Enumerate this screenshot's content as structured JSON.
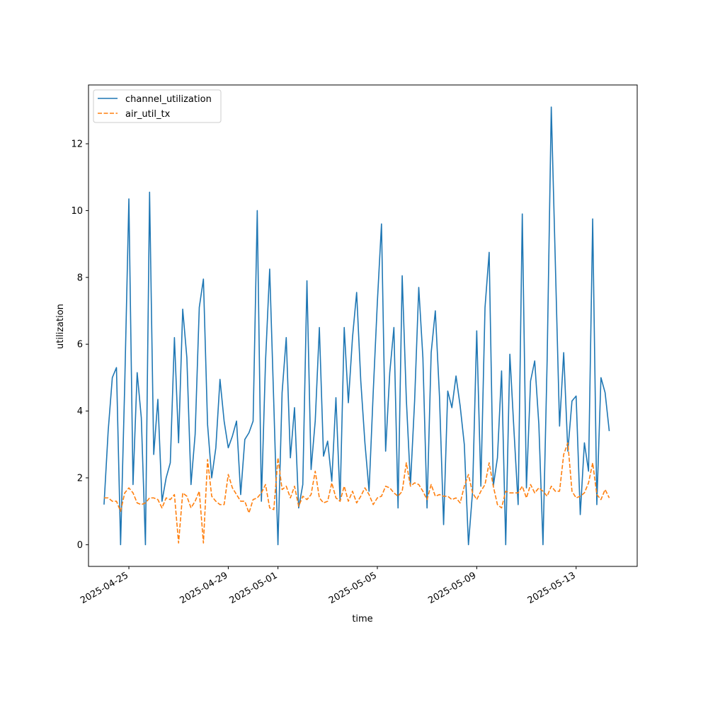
{
  "chart_data": {
    "type": "line",
    "title": "",
    "xlabel": "time",
    "ylabel": "utilization",
    "xlim": [
      "2025-04-23T09:00",
      "2025-05-15T11:00"
    ],
    "ylim": [
      -0.65,
      13.76
    ],
    "x_ticks": [
      {
        "date": "2025-04-25",
        "label": "2025-04-25"
      },
      {
        "date": "2025-04-29",
        "label": "2025-04-29"
      },
      {
        "date": "2025-05-01",
        "label": "2025-05-01"
      },
      {
        "date": "2025-05-05",
        "label": "2025-05-05"
      },
      {
        "date": "2025-05-09",
        "label": "2025-05-09"
      },
      {
        "date": "2025-05-13",
        "label": "2025-05-13"
      }
    ],
    "y_ticks": [
      0,
      2,
      4,
      6,
      8,
      10,
      12
    ],
    "y_tick_labels": [
      "0",
      "2",
      "4",
      "6",
      "8",
      "10",
      "12"
    ],
    "grid": false,
    "legend": "top-left",
    "series": [
      {
        "name": "channel_utilization",
        "color": "#1f77b4",
        "style": "solid",
        "points": [
          [
            "2025-04-24T00:00",
            1.2
          ],
          [
            "2025-04-24T04:00",
            3.4
          ],
          [
            "2025-04-24T08:00",
            5.0
          ],
          [
            "2025-04-24T12:00",
            5.3
          ],
          [
            "2025-04-24T16:00",
            0.0
          ],
          [
            "2025-04-24T20:00",
            4.8
          ],
          [
            "2025-04-25T00:00",
            10.35
          ],
          [
            "2025-04-25T04:00",
            1.8
          ],
          [
            "2025-04-25T08:00",
            5.15
          ],
          [
            "2025-04-25T12:00",
            3.8
          ],
          [
            "2025-04-25T16:00",
            0.0
          ],
          [
            "2025-04-25T20:00",
            10.55
          ],
          [
            "2025-04-26T00:00",
            2.7
          ],
          [
            "2025-04-26T04:00",
            4.35
          ],
          [
            "2025-04-26T08:00",
            1.3
          ],
          [
            "2025-04-26T12:00",
            2.0
          ],
          [
            "2025-04-26T16:00",
            2.45
          ],
          [
            "2025-04-26T20:00",
            6.2
          ],
          [
            "2025-04-27T00:00",
            3.05
          ],
          [
            "2025-04-27T04:00",
            7.05
          ],
          [
            "2025-04-27T08:00",
            5.6
          ],
          [
            "2025-04-27T12:00",
            1.8
          ],
          [
            "2025-04-27T16:00",
            3.3
          ],
          [
            "2025-04-27T20:00",
            7.1
          ],
          [
            "2025-04-28T00:00",
            7.95
          ],
          [
            "2025-04-28T04:00",
            3.6
          ],
          [
            "2025-04-28T08:00",
            2.0
          ],
          [
            "2025-04-28T12:00",
            2.9
          ],
          [
            "2025-04-28T16:00",
            4.95
          ],
          [
            "2025-04-28T20:00",
            3.7
          ],
          [
            "2025-04-29T00:00",
            2.9
          ],
          [
            "2025-04-29T04:00",
            3.25
          ],
          [
            "2025-04-29T08:00",
            3.7
          ],
          [
            "2025-04-29T12:00",
            1.5
          ],
          [
            "2025-04-29T16:00",
            3.15
          ],
          [
            "2025-04-29T20:00",
            3.35
          ],
          [
            "2025-04-30T00:00",
            3.7
          ],
          [
            "2025-04-30T04:00",
            10.0
          ],
          [
            "2025-04-30T08:00",
            1.3
          ],
          [
            "2025-04-30T12:00",
            5.5
          ],
          [
            "2025-04-30T16:00",
            8.25
          ],
          [
            "2025-04-30T20:00",
            4.2
          ],
          [
            "2025-05-01T00:00",
            0.0
          ],
          [
            "2025-05-01T04:00",
            4.55
          ],
          [
            "2025-05-01T08:00",
            6.2
          ],
          [
            "2025-05-01T12:00",
            2.6
          ],
          [
            "2025-05-01T16:00",
            4.1
          ],
          [
            "2025-05-01T20:00",
            1.1
          ],
          [
            "2025-05-02T00:00",
            1.8
          ],
          [
            "2025-05-02T04:00",
            7.9
          ],
          [
            "2025-05-02T08:00",
            2.25
          ],
          [
            "2025-05-02T12:00",
            3.7
          ],
          [
            "2025-05-02T16:00",
            6.5
          ],
          [
            "2025-05-02T20:00",
            2.65
          ],
          [
            "2025-05-03T00:00",
            3.1
          ],
          [
            "2025-05-03T04:00",
            1.9
          ],
          [
            "2025-05-03T08:00",
            4.4
          ],
          [
            "2025-05-03T12:00",
            1.3
          ],
          [
            "2025-05-03T16:00",
            6.5
          ],
          [
            "2025-05-03T20:00",
            4.25
          ],
          [
            "2025-05-04T00:00",
            6.2
          ],
          [
            "2025-05-04T04:00",
            7.55
          ],
          [
            "2025-05-04T08:00",
            4.9
          ],
          [
            "2025-05-04T12:00",
            3.05
          ],
          [
            "2025-05-04T16:00",
            1.6
          ],
          [
            "2025-05-04T20:00",
            4.55
          ],
          [
            "2025-05-05T00:00",
            7.25
          ],
          [
            "2025-05-05T04:00",
            9.6
          ],
          [
            "2025-05-05T08:00",
            2.8
          ],
          [
            "2025-05-05T12:00",
            5.15
          ],
          [
            "2025-05-05T16:00",
            6.5
          ],
          [
            "2025-05-05T20:00",
            1.1
          ],
          [
            "2025-05-06T00:00",
            8.05
          ],
          [
            "2025-05-06T04:00",
            4.35
          ],
          [
            "2025-05-06T08:00",
            1.8
          ],
          [
            "2025-05-06T12:00",
            4.3
          ],
          [
            "2025-05-06T16:00",
            7.7
          ],
          [
            "2025-05-06T20:00",
            5.6
          ],
          [
            "2025-05-07T00:00",
            1.1
          ],
          [
            "2025-05-07T04:00",
            5.75
          ],
          [
            "2025-05-07T08:00",
            7.0
          ],
          [
            "2025-05-07T12:00",
            4.45
          ],
          [
            "2025-05-07T16:00",
            0.6
          ],
          [
            "2025-05-07T20:00",
            4.6
          ],
          [
            "2025-05-08T00:00",
            4.1
          ],
          [
            "2025-05-08T04:00",
            5.05
          ],
          [
            "2025-05-08T08:00",
            4.15
          ],
          [
            "2025-05-08T12:00",
            3.0
          ],
          [
            "2025-05-08T16:00",
            0.0
          ],
          [
            "2025-05-08T20:00",
            1.6
          ],
          [
            "2025-05-09T00:00",
            6.4
          ],
          [
            "2025-05-09T04:00",
            1.75
          ],
          [
            "2025-05-09T08:00",
            7.1
          ],
          [
            "2025-05-09T12:00",
            8.75
          ],
          [
            "2025-05-09T16:00",
            1.75
          ],
          [
            "2025-05-09T20:00",
            2.6
          ],
          [
            "2025-05-10T00:00",
            5.2
          ],
          [
            "2025-05-10T04:00",
            0.0
          ],
          [
            "2025-05-10T08:00",
            5.7
          ],
          [
            "2025-05-10T12:00",
            3.4
          ],
          [
            "2025-05-10T16:00",
            1.2
          ],
          [
            "2025-05-10T20:00",
            9.9
          ],
          [
            "2025-05-11T00:00",
            1.7
          ],
          [
            "2025-05-11T04:00",
            4.9
          ],
          [
            "2025-05-11T08:00",
            5.5
          ],
          [
            "2025-05-11T12:00",
            3.6
          ],
          [
            "2025-05-11T16:00",
            0.0
          ],
          [
            "2025-05-11T20:00",
            5.5
          ],
          [
            "2025-05-12T00:00",
            13.1
          ],
          [
            "2025-05-12T04:00",
            8.35
          ],
          [
            "2025-05-12T08:00",
            3.55
          ],
          [
            "2025-05-12T12:00",
            5.75
          ],
          [
            "2025-05-12T16:00",
            2.8
          ],
          [
            "2025-05-12T20:00",
            4.3
          ],
          [
            "2025-05-13T00:00",
            4.45
          ],
          [
            "2025-05-13T04:00",
            0.9
          ],
          [
            "2025-05-13T08:00",
            3.05
          ],
          [
            "2025-05-13T12:00",
            2.2
          ],
          [
            "2025-05-13T16:00",
            9.75
          ],
          [
            "2025-05-13T20:00",
            1.2
          ],
          [
            "2025-05-14T00:00",
            5.0
          ],
          [
            "2025-05-14T04:00",
            4.55
          ],
          [
            "2025-05-14T08:00",
            3.4
          ]
        ]
      },
      {
        "name": "air_util_tx",
        "color": "#ff7f0e",
        "style": "dashed",
        "points": [
          [
            "2025-04-24T00:00",
            1.4
          ],
          [
            "2025-04-24T04:00",
            1.4
          ],
          [
            "2025-04-24T08:00",
            1.3
          ],
          [
            "2025-04-24T12:00",
            1.3
          ],
          [
            "2025-04-24T16:00",
            1.0
          ],
          [
            "2025-04-24T20:00",
            1.55
          ],
          [
            "2025-04-25T00:00",
            1.7
          ],
          [
            "2025-04-25T04:00",
            1.55
          ],
          [
            "2025-04-25T08:00",
            1.25
          ],
          [
            "2025-04-25T12:00",
            1.2
          ],
          [
            "2025-04-25T16:00",
            1.25
          ],
          [
            "2025-04-25T20:00",
            1.4
          ],
          [
            "2025-04-26T00:00",
            1.4
          ],
          [
            "2025-04-26T04:00",
            1.35
          ],
          [
            "2025-04-26T08:00",
            1.1
          ],
          [
            "2025-04-26T12:00",
            1.4
          ],
          [
            "2025-04-26T16:00",
            1.35
          ],
          [
            "2025-04-26T20:00",
            1.5
          ],
          [
            "2025-04-27T00:00",
            0.05
          ],
          [
            "2025-04-27T04:00",
            1.55
          ],
          [
            "2025-04-27T08:00",
            1.45
          ],
          [
            "2025-04-27T12:00",
            1.1
          ],
          [
            "2025-04-27T16:00",
            1.3
          ],
          [
            "2025-04-27T20:00",
            1.6
          ],
          [
            "2025-04-28T00:00",
            0.05
          ],
          [
            "2025-04-28T04:00",
            2.55
          ],
          [
            "2025-04-28T08:00",
            1.45
          ],
          [
            "2025-04-28T12:00",
            1.3
          ],
          [
            "2025-04-28T16:00",
            1.2
          ],
          [
            "2025-04-28T20:00",
            1.2
          ],
          [
            "2025-04-29T00:00",
            2.1
          ],
          [
            "2025-04-29T04:00",
            1.7
          ],
          [
            "2025-04-29T08:00",
            1.5
          ],
          [
            "2025-04-29T12:00",
            1.3
          ],
          [
            "2025-04-29T16:00",
            1.3
          ],
          [
            "2025-04-29T20:00",
            0.95
          ],
          [
            "2025-04-30T00:00",
            1.35
          ],
          [
            "2025-04-30T04:00",
            1.4
          ],
          [
            "2025-04-30T08:00",
            1.55
          ],
          [
            "2025-04-30T12:00",
            1.8
          ],
          [
            "2025-04-30T16:00",
            1.1
          ],
          [
            "2025-04-30T20:00",
            1.05
          ],
          [
            "2025-05-01T00:00",
            2.6
          ],
          [
            "2025-05-01T04:00",
            1.65
          ],
          [
            "2025-05-01T08:00",
            1.75
          ],
          [
            "2025-05-01T12:00",
            1.4
          ],
          [
            "2025-05-01T16:00",
            1.75
          ],
          [
            "2025-05-01T20:00",
            1.15
          ],
          [
            "2025-05-02T00:00",
            1.45
          ],
          [
            "2025-05-02T04:00",
            1.35
          ],
          [
            "2025-05-02T08:00",
            1.5
          ],
          [
            "2025-05-02T12:00",
            2.2
          ],
          [
            "2025-05-02T16:00",
            1.4
          ],
          [
            "2025-05-02T20:00",
            1.25
          ],
          [
            "2025-05-03T00:00",
            1.3
          ],
          [
            "2025-05-03T04:00",
            1.85
          ],
          [
            "2025-05-03T08:00",
            1.4
          ],
          [
            "2025-05-03T12:00",
            1.3
          ],
          [
            "2025-05-03T16:00",
            1.75
          ],
          [
            "2025-05-03T20:00",
            1.3
          ],
          [
            "2025-05-04T00:00",
            1.6
          ],
          [
            "2025-05-04T04:00",
            1.25
          ],
          [
            "2025-05-04T08:00",
            1.45
          ],
          [
            "2025-05-04T12:00",
            1.7
          ],
          [
            "2025-05-04T16:00",
            1.5
          ],
          [
            "2025-05-04T20:00",
            1.2
          ],
          [
            "2025-05-05T00:00",
            1.4
          ],
          [
            "2025-05-05T04:00",
            1.45
          ],
          [
            "2025-05-05T08:00",
            1.75
          ],
          [
            "2025-05-05T12:00",
            1.7
          ],
          [
            "2025-05-05T16:00",
            1.55
          ],
          [
            "2025-05-05T20:00",
            1.45
          ],
          [
            "2025-05-06T00:00",
            1.6
          ],
          [
            "2025-05-06T04:00",
            2.45
          ],
          [
            "2025-05-06T08:00",
            1.75
          ],
          [
            "2025-05-06T12:00",
            1.85
          ],
          [
            "2025-05-06T16:00",
            1.8
          ],
          [
            "2025-05-06T20:00",
            1.6
          ],
          [
            "2025-05-07T00:00",
            1.35
          ],
          [
            "2025-05-07T04:00",
            1.8
          ],
          [
            "2025-05-07T08:00",
            1.45
          ],
          [
            "2025-05-07T12:00",
            1.5
          ],
          [
            "2025-05-07T16:00",
            1.45
          ],
          [
            "2025-05-07T20:00",
            1.45
          ],
          [
            "2025-05-08T00:00",
            1.35
          ],
          [
            "2025-05-08T04:00",
            1.4
          ],
          [
            "2025-05-08T08:00",
            1.25
          ],
          [
            "2025-05-08T12:00",
            1.75
          ],
          [
            "2025-05-08T16:00",
            2.1
          ],
          [
            "2025-05-08T20:00",
            1.55
          ],
          [
            "2025-05-09T00:00",
            1.35
          ],
          [
            "2025-05-09T04:00",
            1.6
          ],
          [
            "2025-05-09T08:00",
            1.8
          ],
          [
            "2025-05-09T12:00",
            2.45
          ],
          [
            "2025-05-09T16:00",
            1.75
          ],
          [
            "2025-05-09T20:00",
            1.2
          ],
          [
            "2025-05-10T00:00",
            1.1
          ],
          [
            "2025-05-10T04:00",
            1.6
          ],
          [
            "2025-05-10T08:00",
            1.55
          ],
          [
            "2025-05-10T12:00",
            1.55
          ],
          [
            "2025-05-10T16:00",
            1.55
          ],
          [
            "2025-05-10T20:00",
            1.75
          ],
          [
            "2025-05-11T00:00",
            1.4
          ],
          [
            "2025-05-11T04:00",
            1.8
          ],
          [
            "2025-05-11T08:00",
            1.55
          ],
          [
            "2025-05-11T12:00",
            1.7
          ],
          [
            "2025-05-11T16:00",
            1.6
          ],
          [
            "2025-05-11T20:00",
            1.45
          ],
          [
            "2025-05-12T00:00",
            1.75
          ],
          [
            "2025-05-12T04:00",
            1.6
          ],
          [
            "2025-05-12T08:00",
            1.6
          ],
          [
            "2025-05-12T12:00",
            2.7
          ],
          [
            "2025-05-12T16:00",
            3.05
          ],
          [
            "2025-05-12T20:00",
            1.6
          ],
          [
            "2025-05-13T00:00",
            1.4
          ],
          [
            "2025-05-13T04:00",
            1.45
          ],
          [
            "2025-05-13T08:00",
            1.55
          ],
          [
            "2025-05-13T12:00",
            1.85
          ],
          [
            "2025-05-13T16:00",
            2.45
          ],
          [
            "2025-05-13T20:00",
            1.5
          ],
          [
            "2025-05-14T00:00",
            1.35
          ],
          [
            "2025-05-14T04:00",
            1.65
          ],
          [
            "2025-05-14T08:00",
            1.4
          ]
        ]
      }
    ]
  }
}
